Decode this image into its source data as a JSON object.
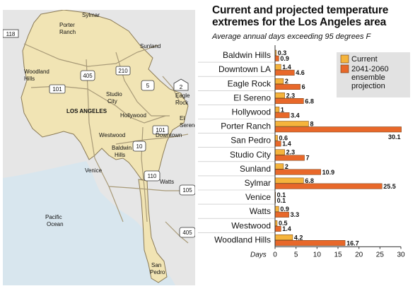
{
  "chart_data": {
    "type": "bar",
    "orientation": "horizontal",
    "title": "Current and projected temperature extremes for the Los Angeles area",
    "subtitle": "Average annual days exceeding 95 degrees F",
    "xlabel": "Days",
    "xlim": [
      0,
      30
    ],
    "xticks": [
      0,
      5,
      10,
      15,
      20,
      25,
      30
    ],
    "legend_position": "top-right",
    "categories": [
      "Baldwin Hills",
      "Downtown LA",
      "Eagle Rock",
      "El Sereno",
      "Hollywood",
      "Porter Ranch",
      "San Pedro",
      "Studio City",
      "Sunland",
      "Sylmar",
      "Venice",
      "Watts",
      "Westwood",
      "Woodland Hills"
    ],
    "series": [
      {
        "name": "Current",
        "color": "#F5B43C",
        "values": [
          0.3,
          1.4,
          2,
          2.3,
          1,
          8,
          0.6,
          2.3,
          2,
          6.8,
          0.1,
          0.9,
          0.5,
          4.2
        ]
      },
      {
        "name": "2041-2060 ensemble projection",
        "color": "#E8682A",
        "values": [
          0.9,
          4.6,
          6,
          6.8,
          3.4,
          30.1,
          1.4,
          7,
          10.9,
          25.5,
          0.1,
          3.3,
          1.4,
          16.7
        ]
      }
    ]
  },
  "legend_lines": [
    "Current",
    "2041-2060",
    "ensemble",
    "projection"
  ],
  "map": {
    "labels": [
      "Sylmar",
      "Porter Ranch",
      "Sunland",
      "Woodland Hills",
      "Studio City",
      "Eagle Rock",
      "El Sereno",
      "LOS ANGELES",
      "Hollywood",
      "Westwood",
      "Downtown",
      "Baldwin Hills",
      "Venice",
      "Watts",
      "Pacific Ocean",
      "San Pedro"
    ],
    "highways": [
      "118",
      "210",
      "405",
      "101",
      "5",
      "2",
      "101",
      "10",
      "110",
      "105",
      "405"
    ],
    "colors": {
      "city": "#F1E4B4",
      "outline": "#8a7a55",
      "water": "#D8E6EE",
      "grey": "#E6E6E6",
      "road": "#a89a78"
    }
  }
}
